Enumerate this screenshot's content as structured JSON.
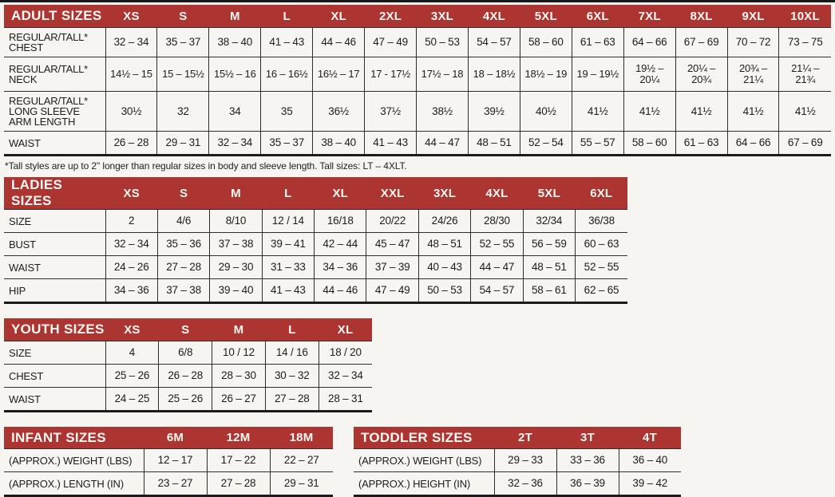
{
  "colors": {
    "header_bg": "#ac3431",
    "header_text": "#fdf8f4",
    "body_text": "#1c1c1c",
    "border": "#2e2e2e",
    "page_bg": "#f7f5f2"
  },
  "tables": {
    "adult": {
      "title": "ADULT SIZES",
      "columns": [
        "XS",
        "S",
        "M",
        "L",
        "XL",
        "2XL",
        "3XL",
        "4XL",
        "5XL",
        "6XL",
        "7XL",
        "8XL",
        "9XL",
        "10XL"
      ],
      "rows": [
        {
          "label": "REGULAR/TALL*\nCHEST",
          "values": [
            "32 – 34",
            "35 – 37",
            "38 – 40",
            "41 – 43",
            "44 – 46",
            "47 – 49",
            "50 – 53",
            "54 – 57",
            "58 – 60",
            "61 – 63",
            "64 – 66",
            "67 – 69",
            "70 – 72",
            "73 – 75"
          ]
        },
        {
          "label": "REGULAR/TALL*\nNECK",
          "values": [
            "14½ – 15",
            "15 – 15½",
            "15½ – 16",
            "16 – 16½",
            "16½ – 17",
            "17 - 17½",
            "17½ – 18",
            "18 – 18½",
            "18½ – 19",
            "19 – 19½",
            "19½ –\n20¼",
            "20¼ –\n20¾",
            "20¾ –\n21¼",
            "21¼ –\n21¾"
          ]
        },
        {
          "label": "REGULAR/TALL*\nLONG SLEEVE\nARM LENGTH",
          "values": [
            "30½",
            "32",
            "34",
            "35",
            "36½",
            "37½",
            "38½",
            "39½",
            "40½",
            "41½",
            "41½",
            "41½",
            "41½",
            "41½"
          ]
        },
        {
          "label": "WAIST",
          "values": [
            "26 – 28",
            "29 – 31",
            "32 – 34",
            "35 – 37",
            "38 – 40",
            "41 – 43",
            "44 – 47",
            "48 – 51",
            "52 – 54",
            "55 – 57",
            "58 – 60",
            "61 – 63",
            "64 – 66",
            "67 – 69"
          ]
        }
      ],
      "footnote": "*Tall styles are up to 2\" longer than regular sizes in body and sleeve length. Tall sizes: LT – 4XLT."
    },
    "ladies": {
      "title": "LADIES SIZES",
      "columns": [
        "XS",
        "S",
        "M",
        "L",
        "XL",
        "XXL",
        "3XL",
        "4XL",
        "5XL",
        "6XL"
      ],
      "rows": [
        {
          "label": "SIZE",
          "values": [
            "2",
            "4/6",
            "8/10",
            "12 / 14",
            "16/18",
            "20/22",
            "24/26",
            "28/30",
            "32/34",
            "36/38"
          ]
        },
        {
          "label": "BUST",
          "values": [
            "32 – 34",
            "35 – 36",
            "37 – 38",
            "39 – 41",
            "42 – 44",
            "45 – 47",
            "48 – 51",
            "52 – 55",
            "56 – 59",
            "60 – 63"
          ]
        },
        {
          "label": "WAIST",
          "values": [
            "24 – 26",
            "27 – 28",
            "29 – 30",
            "31 – 33",
            "34 – 36",
            "37 – 39",
            "40 – 43",
            "44 – 47",
            "48 – 51",
            "52 – 55"
          ]
        },
        {
          "label": "HIP",
          "values": [
            "34 – 36",
            "37 – 38",
            "39 – 40",
            "41 – 43",
            "44 – 46",
            "47 – 49",
            "50 – 53",
            "54 – 57",
            "58 – 61",
            "62 – 65"
          ]
        }
      ]
    },
    "youth": {
      "title": "YOUTH SIZES",
      "columns": [
        "XS",
        "S",
        "M",
        "L",
        "XL"
      ],
      "rows": [
        {
          "label": "SIZE",
          "values": [
            "4",
            "6/8",
            "10 / 12",
            "14 / 16",
            "18 / 20"
          ]
        },
        {
          "label": "CHEST",
          "values": [
            "25 – 26",
            "26 – 28",
            "28 – 30",
            "30 – 32",
            "32 – 34"
          ]
        },
        {
          "label": "WAIST",
          "values": [
            "24 – 25",
            "25 – 26",
            "26 – 27",
            "27 – 28",
            "28 – 31"
          ]
        }
      ]
    },
    "infant": {
      "title": "INFANT SIZES",
      "columns": [
        "6M",
        "12M",
        "18M"
      ],
      "rows": [
        {
          "label": "(APPROX.) WEIGHT (LBS)",
          "values": [
            "12 – 17",
            "17 – 22",
            "22 – 27"
          ]
        },
        {
          "label": "(APPROX.) LENGTH (IN)",
          "values": [
            "23 – 27",
            "27 – 28",
            "29 – 31"
          ]
        }
      ]
    },
    "toddler": {
      "title": "TODDLER SIZES",
      "columns": [
        "2T",
        "3T",
        "4T"
      ],
      "rows": [
        {
          "label": "(APPROX.) WEIGHT (LBS)",
          "values": [
            "29 – 33",
            "33 – 36",
            "36 – 40"
          ]
        },
        {
          "label": "(APPROX.) HEIGHT (IN)",
          "values": [
            "32 – 36",
            "36 – 39",
            "39 – 42"
          ]
        }
      ]
    }
  }
}
